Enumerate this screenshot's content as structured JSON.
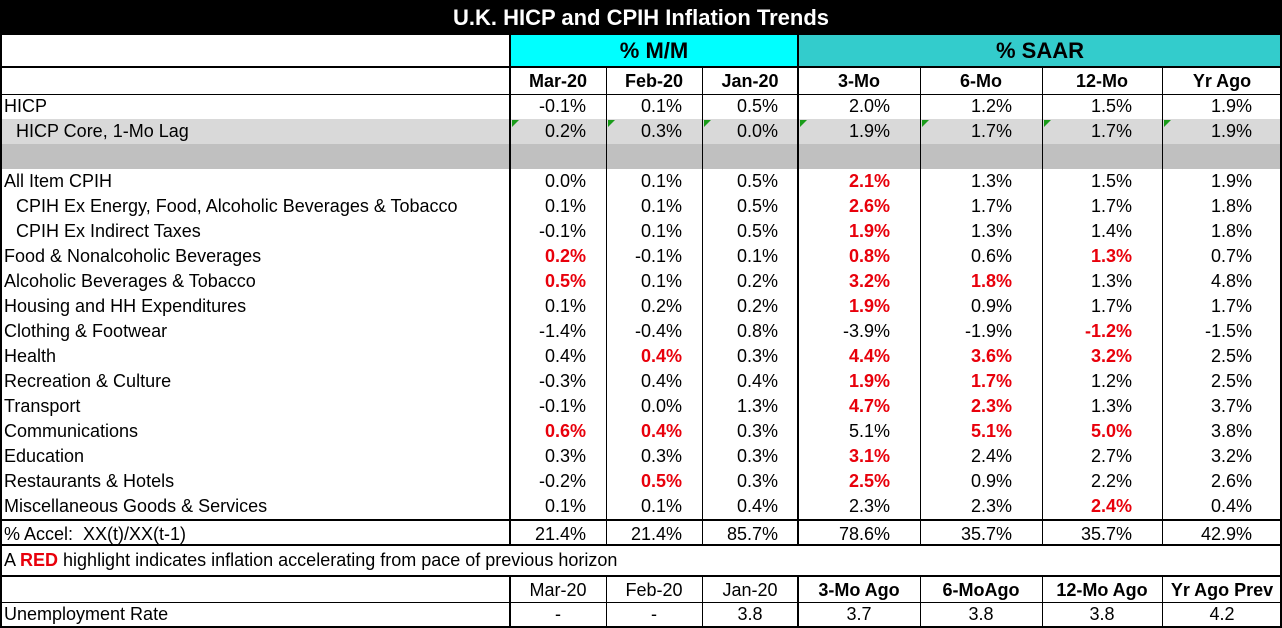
{
  "title": "U.K. HICP and CPIH Inflation Trends",
  "colors": {
    "cyan": "#00ffff",
    "teal": "#33cccc",
    "black": "#000000",
    "red": "#e8000b",
    "shade": "#d9d9d9",
    "shade_dark": "#c0c0c0",
    "marker": "#1a9c1a"
  },
  "groups": {
    "mm": "% M/M",
    "saar": "% SAAR"
  },
  "columns": [
    "Mar-20",
    "Feb-20",
    "Jan-20",
    "3-Mo",
    "6-Mo",
    "12-Mo",
    "Yr Ago"
  ],
  "rows": [
    {
      "label": "HICP",
      "values": [
        "-0.1%",
        "0.1%",
        "0.5%",
        "2.0%",
        "1.2%",
        "1.5%",
        "1.9%"
      ],
      "red": []
    },
    {
      "label": "HICP Core, 1-Mo Lag",
      "values": [
        "0.2%",
        "0.3%",
        "0.0%",
        "1.9%",
        "1.7%",
        "1.7%",
        "1.9%"
      ],
      "red": []
    },
    {
      "label": "",
      "values": [
        "",
        "",
        "",
        "",
        "",
        "",
        ""
      ],
      "red": []
    },
    {
      "label": "All Item CPIH",
      "values": [
        "0.0%",
        "0.1%",
        "0.5%",
        "2.1%",
        "1.3%",
        "1.5%",
        "1.9%"
      ],
      "red": [
        3
      ]
    },
    {
      "label": "CPIH Ex Energy, Food, Alcoholic Beverages & Tobacco",
      "values": [
        "0.1%",
        "0.1%",
        "0.5%",
        "2.6%",
        "1.7%",
        "1.7%",
        "1.8%"
      ],
      "red": [
        3
      ]
    },
    {
      "label": "CPIH Ex Indirect Taxes",
      "values": [
        "-0.1%",
        "0.1%",
        "0.5%",
        "1.9%",
        "1.3%",
        "1.4%",
        "1.8%"
      ],
      "red": [
        3
      ]
    },
    {
      "label": "Food & Nonalcoholic Beverages",
      "values": [
        "0.2%",
        "-0.1%",
        "0.1%",
        "0.8%",
        "0.6%",
        "1.3%",
        "0.7%"
      ],
      "red": [
        0,
        3,
        5
      ]
    },
    {
      "label": "Alcoholic Beverages & Tobacco",
      "values": [
        "0.5%",
        "0.1%",
        "0.2%",
        "3.2%",
        "1.8%",
        "1.3%",
        "4.8%"
      ],
      "red": [
        0,
        3,
        4
      ]
    },
    {
      "label": "Housing and HH Expenditures",
      "values": [
        "0.1%",
        "0.2%",
        "0.2%",
        "1.9%",
        "0.9%",
        "1.7%",
        "1.7%"
      ],
      "red": [
        3
      ]
    },
    {
      "label": "Clothing & Footwear",
      "values": [
        "-1.4%",
        "-0.4%",
        "0.8%",
        "-3.9%",
        "-1.9%",
        "-1.2%",
        "-1.5%"
      ],
      "red": [
        5
      ]
    },
    {
      "label": "Health",
      "values": [
        "0.4%",
        "0.4%",
        "0.3%",
        "4.4%",
        "3.6%",
        "3.2%",
        "2.5%"
      ],
      "red": [
        1,
        3,
        4,
        5
      ]
    },
    {
      "label": "Recreation & Culture",
      "values": [
        "-0.3%",
        "0.4%",
        "0.4%",
        "1.9%",
        "1.7%",
        "1.2%",
        "2.5%"
      ],
      "red": [
        3,
        4
      ]
    },
    {
      "label": "Transport",
      "values": [
        "-0.1%",
        "0.0%",
        "1.3%",
        "4.7%",
        "2.3%",
        "1.3%",
        "3.7%"
      ],
      "red": [
        3,
        4
      ]
    },
    {
      "label": "Communications",
      "values": [
        "0.6%",
        "0.4%",
        "0.3%",
        "5.1%",
        "5.1%",
        "5.0%",
        "3.8%"
      ],
      "red": [
        0,
        1,
        4,
        5
      ]
    },
    {
      "label": "Education",
      "values": [
        "0.3%",
        "0.3%",
        "0.3%",
        "3.1%",
        "2.4%",
        "2.7%",
        "3.2%"
      ],
      "red": [
        3
      ]
    },
    {
      "label": "Restaurants & Hotels",
      "values": [
        "-0.2%",
        "0.5%",
        "0.3%",
        "2.5%",
        "0.9%",
        "2.2%",
        "2.6%"
      ],
      "red": [
        1,
        3
      ]
    },
    {
      "label": "Miscellaneous Goods & Services",
      "values": [
        "0.1%",
        "0.1%",
        "0.4%",
        "2.3%",
        "2.3%",
        "2.4%",
        "0.4%"
      ],
      "red": [
        5
      ]
    }
  ],
  "accel": {
    "label": "% Accel:  XX(t)/XX(t-1)",
    "values": [
      "21.4%",
      "21.4%",
      "85.7%",
      "78.6%",
      "35.7%",
      "35.7%",
      "42.9%"
    ]
  },
  "note": {
    "prefix": "A ",
    "red_word": "RED",
    "suffix": " highlight indicates inflation accelerating from pace of previous horizon"
  },
  "unemp": {
    "columns": [
      "Mar-20",
      "Feb-20",
      "Jan-20",
      "3-Mo Ago",
      "6-MoAgo",
      "12-Mo Ago",
      "Yr Ago Prev"
    ],
    "label": "Unemployment Rate",
    "values": [
      "-",
      "-",
      "3.8",
      "3.7",
      "3.8",
      "3.8",
      "4.2"
    ]
  }
}
